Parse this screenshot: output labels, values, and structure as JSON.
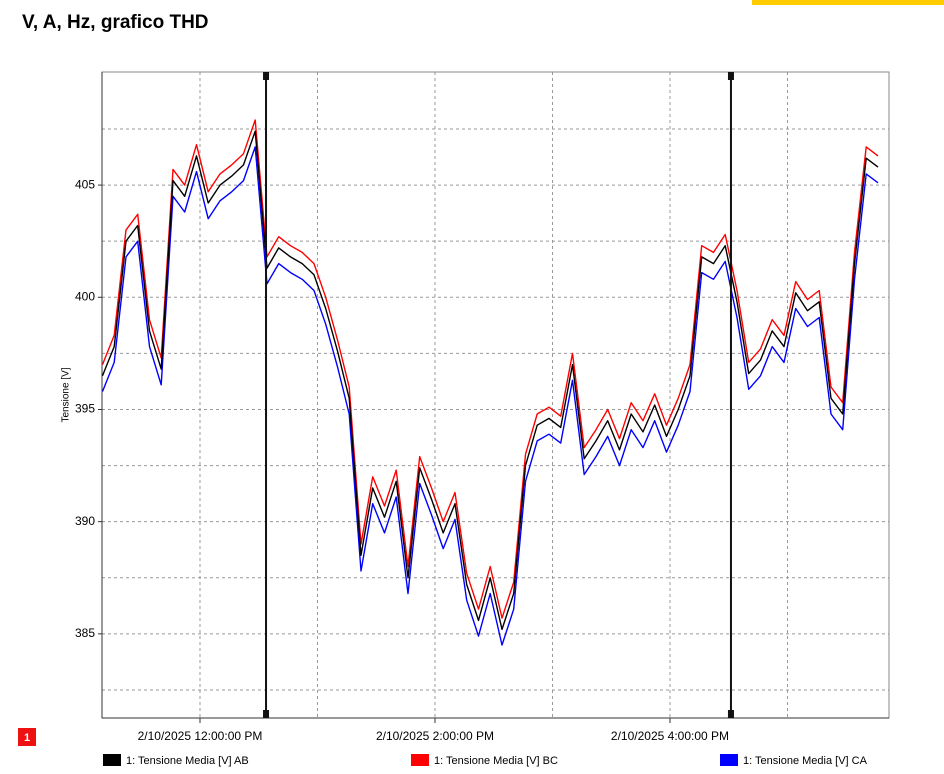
{
  "heading": "V, A, Hz, grafico THD",
  "badge": "1",
  "chart_data": {
    "type": "line",
    "ylabel": "Tensione [V]",
    "xlim": [
      11.166,
      17.864
    ],
    "ylim": [
      381.25,
      410.04
    ],
    "xticks": [
      {
        "value": 12,
        "label": "2/10/2025 12:00:00 PM"
      },
      {
        "value": 14,
        "label": "2/10/2025 2:00:00 PM"
      },
      {
        "value": 16,
        "label": "2/10/2025 4:00:00 PM"
      }
    ],
    "xminor_ticks": [
      13,
      15,
      17
    ],
    "yticks": [
      385,
      390,
      395,
      400,
      405
    ],
    "yminor_ticks": [
      382.5,
      387.5,
      392.5,
      397.5,
      402.5,
      407.5
    ],
    "grid": true,
    "cursors": [
      12.562,
      16.519
    ],
    "x": [
      11.17,
      11.27,
      11.37,
      11.47,
      11.57,
      11.67,
      11.77,
      11.87,
      11.97,
      12.07,
      12.17,
      12.27,
      12.37,
      12.47,
      12.57,
      12.67,
      12.77,
      12.87,
      12.97,
      13.07,
      13.17,
      13.27,
      13.37,
      13.47,
      13.57,
      13.67,
      13.77,
      13.87,
      13.97,
      14.07,
      14.17,
      14.27,
      14.37,
      14.47,
      14.57,
      14.67,
      14.77,
      14.87,
      14.97,
      15.07,
      15.17,
      15.27,
      15.37,
      15.47,
      15.57,
      15.67,
      15.77,
      15.87,
      15.97,
      16.07,
      16.17,
      16.27,
      16.37,
      16.47,
      16.57,
      16.67,
      16.77,
      16.87,
      16.97,
      17.07,
      17.17,
      17.27,
      17.37,
      17.47,
      17.57,
      17.67,
      17.77
    ],
    "series": [
      {
        "name": "1: Tensione Media [V] AB",
        "color": "#000000",
        "values": [
          396.5,
          397.8,
          402.5,
          403.2,
          398.5,
          396.8,
          405.2,
          404.5,
          406.3,
          404.2,
          405.0,
          405.4,
          405.9,
          407.4,
          401.3,
          402.2,
          401.8,
          401.5,
          401.0,
          399.5,
          397.6,
          395.5,
          388.5,
          391.5,
          390.2,
          391.8,
          387.5,
          392.4,
          391.0,
          389.5,
          390.8,
          387.2,
          385.6,
          387.5,
          385.2,
          386.8,
          392.5,
          394.3,
          394.6,
          394.2,
          397.0,
          392.8,
          393.6,
          394.5,
          393.2,
          394.8,
          394.0,
          395.2,
          393.8,
          395.0,
          396.5,
          401.8,
          401.5,
          402.3,
          399.8,
          396.6,
          397.2,
          398.5,
          397.8,
          400.2,
          399.4,
          399.8,
          395.5,
          394.8,
          401.5,
          406.2,
          405.8
        ]
      },
      {
        "name": "1: Tensione Media [V] BC",
        "color": "#ff0000",
        "values": [
          397.0,
          398.3,
          403.0,
          403.7,
          399.0,
          397.3,
          405.7,
          405.0,
          406.8,
          404.7,
          405.5,
          405.9,
          406.4,
          407.9,
          401.8,
          402.7,
          402.3,
          402.0,
          401.5,
          400.0,
          398.1,
          396.0,
          389.0,
          392.0,
          390.7,
          392.3,
          388.0,
          392.9,
          391.5,
          390.0,
          391.3,
          387.7,
          386.1,
          388.0,
          385.7,
          387.3,
          393.0,
          394.8,
          395.1,
          394.7,
          397.5,
          393.3,
          394.1,
          395.0,
          393.7,
          395.3,
          394.5,
          395.7,
          394.3,
          395.5,
          397.0,
          402.3,
          402.0,
          402.8,
          400.3,
          397.1,
          397.7,
          399.0,
          398.3,
          400.7,
          399.9,
          400.3,
          396.0,
          395.3,
          402.0,
          406.7,
          406.3
        ]
      },
      {
        "name": "1: Tensione Media [V] CA",
        "color": "#0000ff",
        "values": [
          395.8,
          397.1,
          401.8,
          402.5,
          397.8,
          396.1,
          404.5,
          403.8,
          405.6,
          403.5,
          404.3,
          404.7,
          405.2,
          406.7,
          400.6,
          401.5,
          401.1,
          400.8,
          400.3,
          398.8,
          396.9,
          394.8,
          387.8,
          390.8,
          389.5,
          391.1,
          386.8,
          391.7,
          390.3,
          388.8,
          390.1,
          386.5,
          384.9,
          386.8,
          384.5,
          386.1,
          391.8,
          393.6,
          393.9,
          393.5,
          396.3,
          392.1,
          392.9,
          393.8,
          392.5,
          394.1,
          393.3,
          394.5,
          393.1,
          394.3,
          395.8,
          401.1,
          400.8,
          401.6,
          399.1,
          395.9,
          396.5,
          397.8,
          397.1,
          399.5,
          398.7,
          399.1,
          394.8,
          394.1,
          400.8,
          405.5,
          405.1
        ]
      }
    ]
  }
}
